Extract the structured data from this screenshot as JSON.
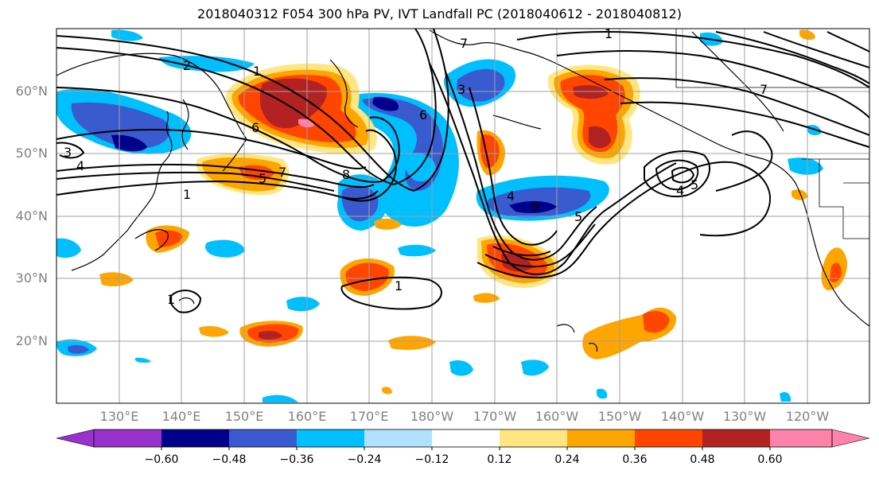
{
  "title": "2018040312 F054 300 hPa PV, IVT Landfall PC (2018040612 - 2018040812)",
  "lat_labels": [
    "60°N",
    "50°N",
    "40°N",
    "30°N",
    "20°N"
  ],
  "lon_labels": [
    "130°E",
    "140°E",
    "150°E",
    "160°E",
    "170°E",
    "180°W",
    "170°W",
    "160°W",
    "150°W",
    "140°W",
    "130°W",
    "120°W"
  ],
  "colorbar": {
    "ticks": [
      "−0.60",
      "−0.48",
      "−0.36",
      "−0.24",
      "−0.12",
      "0.12",
      "0.24",
      "0.36",
      "0.48",
      "0.60"
    ],
    "colors": [
      "#9932cc",
      "#00008b",
      "#3a5bd0",
      "#00bfff",
      "#b0e2ff",
      "#ffffff",
      "#ffe680",
      "#ffa500",
      "#ff4500",
      "#b22222",
      "#ff82ab"
    ]
  },
  "contour_labels": [
    "2",
    "1",
    "6",
    "7",
    "8",
    "3",
    "4",
    "5",
    "1",
    "7",
    "6",
    "3",
    "4",
    "5",
    "4",
    "5",
    "6",
    "7",
    "1",
    "1",
    "1"
  ],
  "colors": {
    "contour": "#000000",
    "grid": "#a0a0a0",
    "coast": "#000000"
  }
}
